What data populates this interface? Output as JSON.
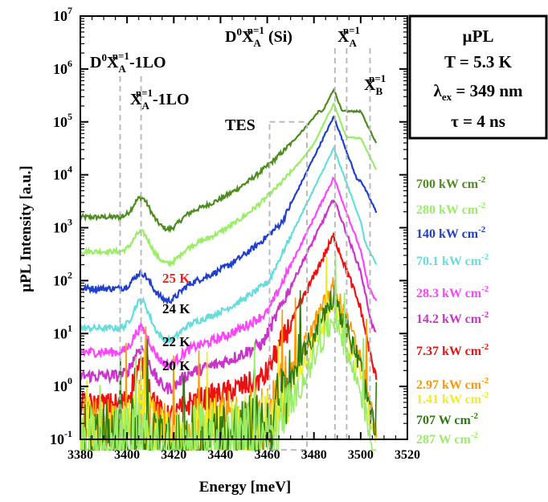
{
  "chart_data": {
    "type": "line",
    "title": "",
    "xlabel": "Energy [meV]",
    "ylabel": "µPL Intensity [a.u.]",
    "xlim": [
      3380,
      3520
    ],
    "xticks": [
      "3380",
      "3400",
      "3420",
      "3440",
      "3460",
      "3480",
      "3500",
      "3520"
    ],
    "ylim_exp": [
      -1,
      7
    ],
    "yscale": "log",
    "yticks": [
      {
        "m": "10",
        "e": "-1"
      },
      {
        "m": "10",
        "e": "0"
      },
      {
        "m": "10",
        "e": "1"
      },
      {
        "m": "10",
        "e": "2"
      },
      {
        "m": "10",
        "e": "3"
      },
      {
        "m": "10",
        "e": "4"
      },
      {
        "m": "10",
        "e": "5"
      },
      {
        "m": "10",
        "e": "6"
      },
      {
        "m": "10",
        "e": "7"
      }
    ],
    "info_box": {
      "line1": "µPL",
      "line2": "T = 5.3 K",
      "line3_sym": "λ",
      "line3_sub": "ex",
      "line3_rest": " = 349 nm",
      "line4": "τ = 4 ns"
    },
    "peak_labels": [
      {
        "main": "D",
        "sup0": "0",
        "x": "X",
        "sub": "A",
        "sup": "n=1",
        "tail": "-1LO",
        "energy": 3397
      },
      {
        "main": "",
        "sup0": "",
        "x": "X",
        "sub": "A",
        "sup": "n=1",
        "tail": "-1LO",
        "energy": 3406
      },
      {
        "main": "D",
        "sup0": "0",
        "x": "X",
        "sub": "A",
        "sup": "n=1",
        "tail": " (Si)",
        "energy": 3489
      },
      {
        "main": "",
        "sup0": "",
        "x": "X",
        "sub": "A",
        "sup": "n=1",
        "tail": "",
        "energy": 3494
      },
      {
        "main": "",
        "sup0": "",
        "x": "X",
        "sub": "B",
        "sup": "n=1",
        "tail": "",
        "energy": 3504
      }
    ],
    "tes_label": "TES",
    "tes_box": {
      "x0": 3461,
      "x1": 3477,
      "y0_exp": -1.2,
      "y1_exp": 5.0
    },
    "temp_labels": [
      {
        "text": "25 K",
        "color": "#ff1a1a"
      },
      {
        "text": "24 K",
        "color": "#000000"
      },
      {
        "text": "22 K",
        "color": "#000000"
      },
      {
        "text": "20 K",
        "color": "#000000"
      }
    ],
    "series": [
      {
        "name": "700 kW cm",
        "sup": "-2",
        "color": "#4d8c1f",
        "level": 3.2,
        "lo": 3.45,
        "mid": 5.2,
        "peak": 5.62,
        "noise": 0.015
      },
      {
        "name": "280 kW cm",
        "sup": "-2",
        "color": "#99ee66",
        "level": 2.55,
        "lo": 2.8,
        "mid": 4.7,
        "peak": 5.35,
        "noise": 0.015
      },
      {
        "name": "140 kW cm",
        "sup": "-2",
        "color": "#1f3fcc",
        "level": 1.85,
        "lo": 2.05,
        "mid": 3.9,
        "peak": 5.1,
        "noise": 0.02
      },
      {
        "name": "70.1 kW cm",
        "sup": "-2",
        "color": "#66dddd",
        "level": 1.1,
        "lo": 1.45,
        "mid": 2.9,
        "peak": 4.5,
        "noise": 0.02
      },
      {
        "name": "28.3 kW cm",
        "sup": "-2",
        "color": "#ff44ff",
        "level": 0.65,
        "lo": 0.95,
        "mid": 2.2,
        "peak": 3.95,
        "noise": 0.03
      },
      {
        "name": "14.2 kW cm",
        "sup": "-2",
        "color": "#cc33cc",
        "level": 0.2,
        "lo": 0.55,
        "mid": 1.6,
        "peak": 3.55,
        "noise": 0.04
      },
      {
        "name": "7.37 kW cm",
        "sup": "-2",
        "color": "#ee1111",
        "level": -0.35,
        "lo": 0.15,
        "mid": 0.8,
        "peak": 2.85,
        "noise": 0.08
      },
      {
        "name": "2.97 kW cm",
        "sup": "-2",
        "color": "#ff9900",
        "level": -0.85,
        "lo": -0.6,
        "mid": -0.3,
        "peak": 1.9,
        "noise": 0.22
      },
      {
        "name": "1.41 kW cm",
        "sup": "-2",
        "color": "#eeee22",
        "level": -0.9,
        "lo": -0.7,
        "mid": -0.5,
        "peak": 1.6,
        "noise": 0.22
      },
      {
        "name": "707 W cm",
        "sup": "-2",
        "color": "#2f7a10",
        "level": -1.05,
        "lo": -0.9,
        "mid": -0.6,
        "peak": 1.75,
        "noise": 0.25
      },
      {
        "name": "287 W cm",
        "sup": "-2",
        "color": "#99ee66",
        "level": -1.1,
        "lo": -1.0,
        "mid": -0.8,
        "peak": 1.3,
        "noise": 0.25
      }
    ]
  }
}
